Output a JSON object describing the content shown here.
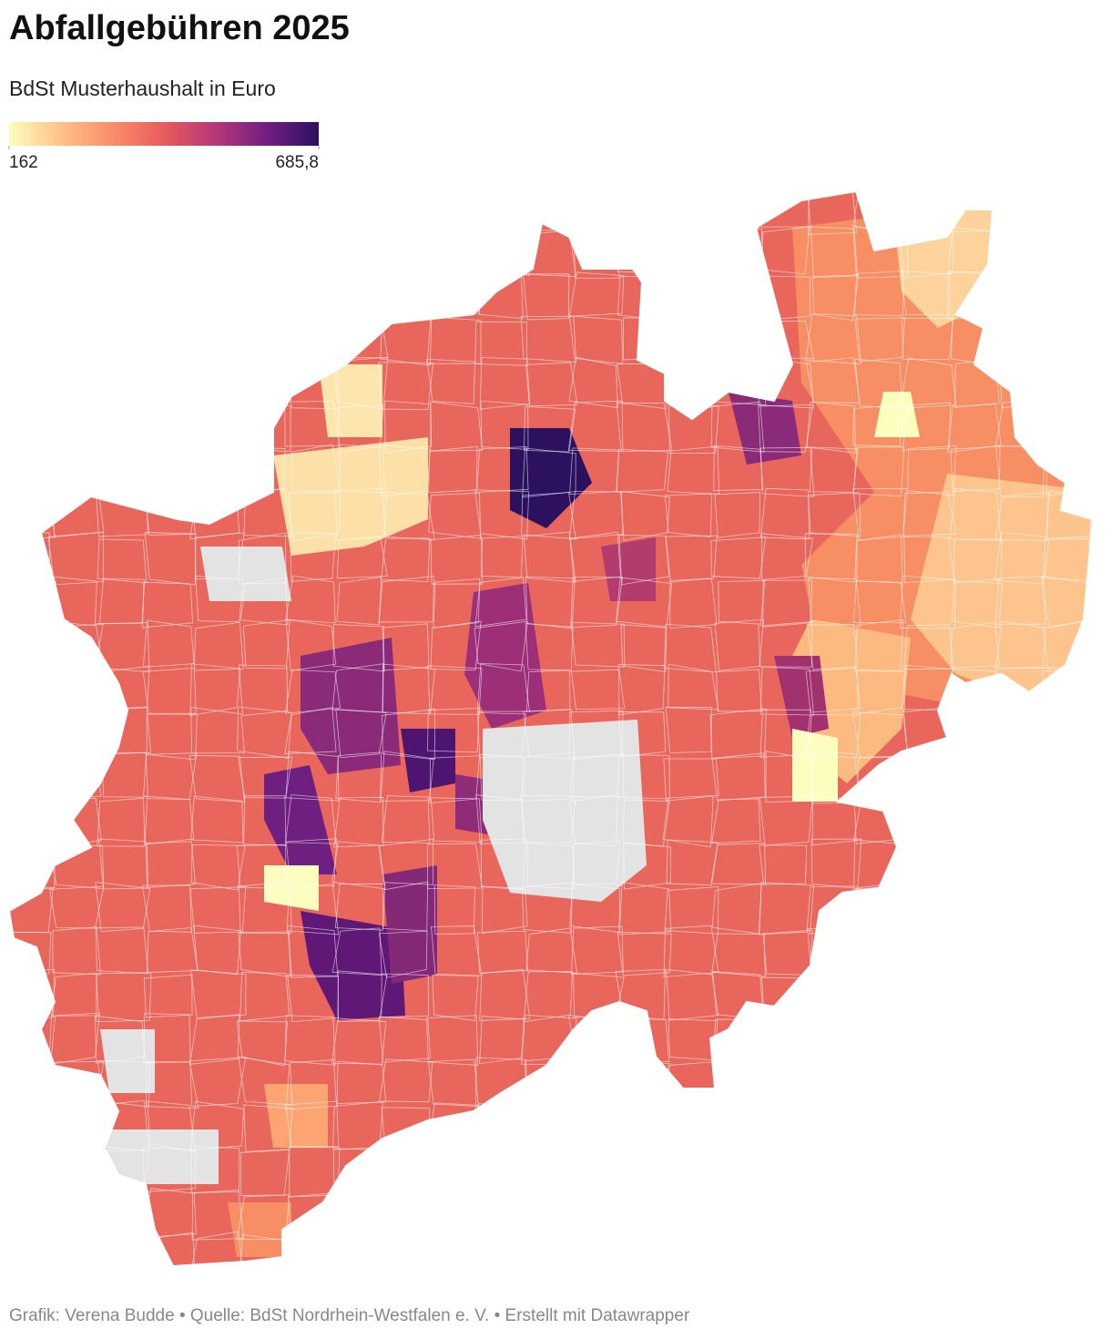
{
  "header": {
    "title": "Abfallgebühren 2025",
    "subtitle": "BdSt Musterhaushalt in Euro"
  },
  "legend": {
    "min": 162,
    "max": {
      "value": 685.8,
      "label": "685,8"
    },
    "colors": [
      "#fcfdbf",
      "#fec287",
      "#f98e6a",
      "#e85b5b",
      "#b73779",
      "#721f81",
      "#2c115f"
    ]
  },
  "footer": "Grafik: Verena Budde • Quelle: BdSt Nordrhein-Westfalen e. V. • Erstellt mit Datawrapper"
}
